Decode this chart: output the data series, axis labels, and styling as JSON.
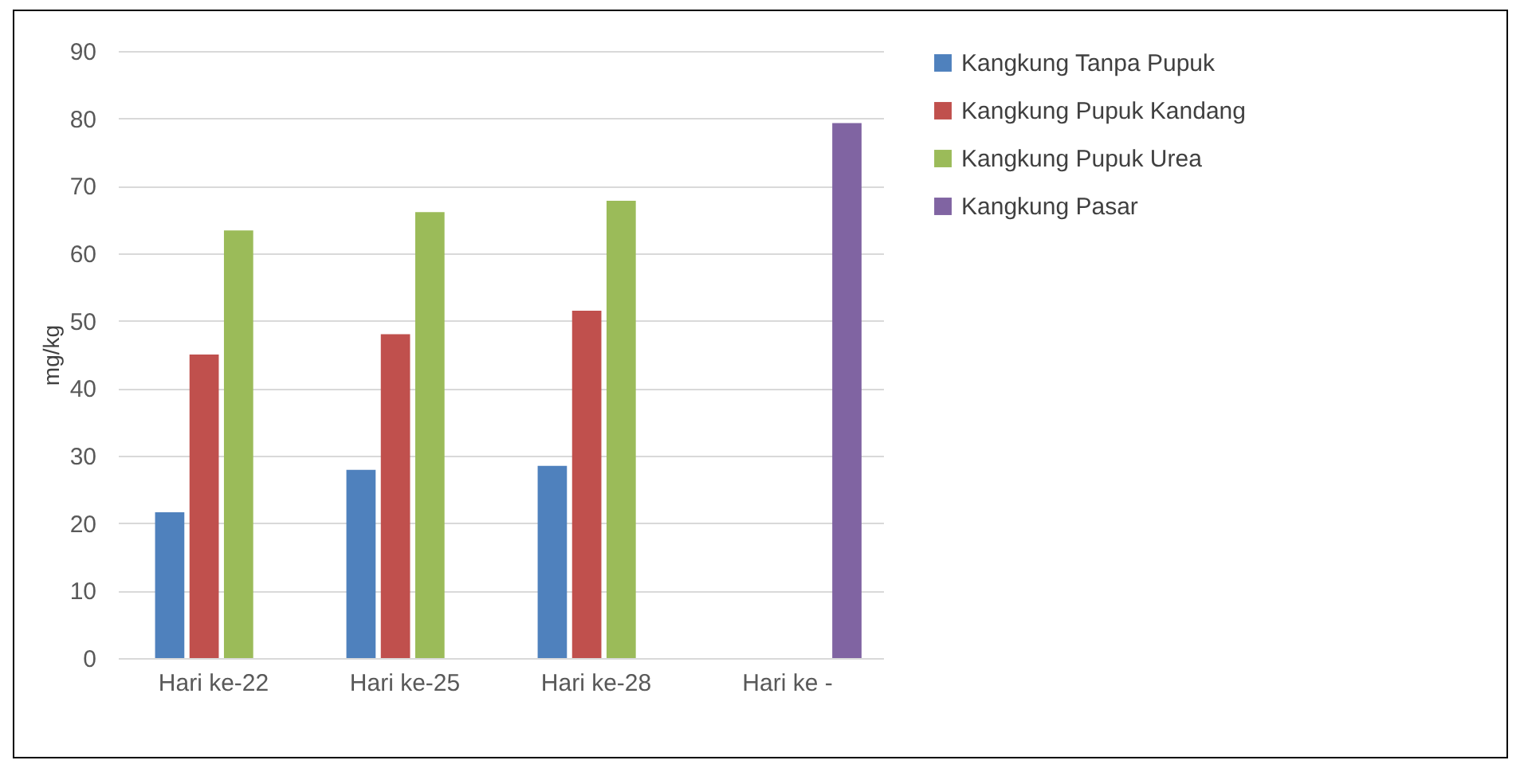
{
  "chart_data": {
    "type": "bar",
    "ylabel": "mg/kg",
    "categories": [
      "Hari ke-22",
      "Hari ke-25",
      "Hari ke-28",
      "Hari ke  -"
    ],
    "series": [
      {
        "name": "Kangkung Tanpa Pupuk",
        "color": "#4f81bd",
        "values": [
          21.6,
          27.9,
          28.5,
          null
        ]
      },
      {
        "name": "Kangkung Pupuk Kandang",
        "color": "#c0504d",
        "values": [
          45.0,
          48.0,
          51.5,
          null
        ]
      },
      {
        "name": "Kangkung Pupuk Urea",
        "color": "#9bbb59",
        "values": [
          63.4,
          66.1,
          67.8,
          null
        ]
      },
      {
        "name": "Kangkung Pasar",
        "color": "#8064a2",
        "values": [
          null,
          null,
          null,
          79.3
        ]
      }
    ],
    "ylim": [
      0,
      90
    ],
    "yticks": [
      0,
      10,
      20,
      30,
      40,
      50,
      60,
      70,
      80,
      90
    ],
    "grid": "y",
    "legend": "right"
  }
}
